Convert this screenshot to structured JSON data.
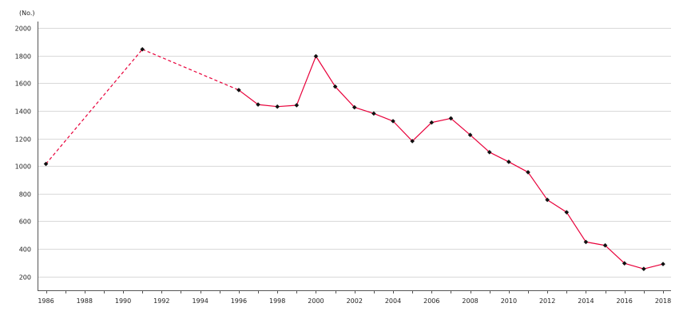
{
  "chart_data": {
    "type": "line",
    "unit_label": "(No.)",
    "xlim": [
      1986,
      2018
    ],
    "ylim": [
      100,
      2000
    ],
    "x_ticks": [
      "1986",
      "1988",
      "1990",
      "1992",
      "1994",
      "1996",
      "1998",
      "2000",
      "2002",
      "2004",
      "2006",
      "2008",
      "2010",
      "2012",
      "2014",
      "2016",
      "2018"
    ],
    "y_ticks": [
      "200",
      "400",
      "600",
      "800",
      "1000",
      "1200",
      "1400",
      "1600",
      "1800",
      "2000"
    ],
    "grid": "horizontal",
    "colors": {
      "line": "#e8003a",
      "marker": "#111111"
    },
    "series": [
      {
        "points": [
          {
            "x": 1986,
            "y": 1015
          },
          {
            "x": 1991,
            "y": 1845
          },
          {
            "x": 1996,
            "y": 1550
          },
          {
            "x": 1997,
            "y": 1445
          },
          {
            "x": 1998,
            "y": 1430
          },
          {
            "x": 1999,
            "y": 1440
          },
          {
            "x": 2000,
            "y": 1795
          },
          {
            "x": 2001,
            "y": 1575
          },
          {
            "x": 2002,
            "y": 1425
          },
          {
            "x": 2003,
            "y": 1380
          },
          {
            "x": 2004,
            "y": 1325
          },
          {
            "x": 2005,
            "y": 1180
          },
          {
            "x": 2006,
            "y": 1315
          },
          {
            "x": 2007,
            "y": 1345
          },
          {
            "x": 2008,
            "y": 1225
          },
          {
            "x": 2009,
            "y": 1100
          },
          {
            "x": 2010,
            "y": 1030
          },
          {
            "x": 2011,
            "y": 955
          },
          {
            "x": 2012,
            "y": 755
          },
          {
            "x": 2013,
            "y": 665
          },
          {
            "x": 2014,
            "y": 450
          },
          {
            "x": 2015,
            "y": 425
          },
          {
            "x": 2016,
            "y": 295
          },
          {
            "x": 2017,
            "y": 255
          },
          {
            "x": 2018,
            "y": 290
          }
        ],
        "dashed_segments_ending_at": [
          1991,
          1996
        ]
      }
    ]
  }
}
